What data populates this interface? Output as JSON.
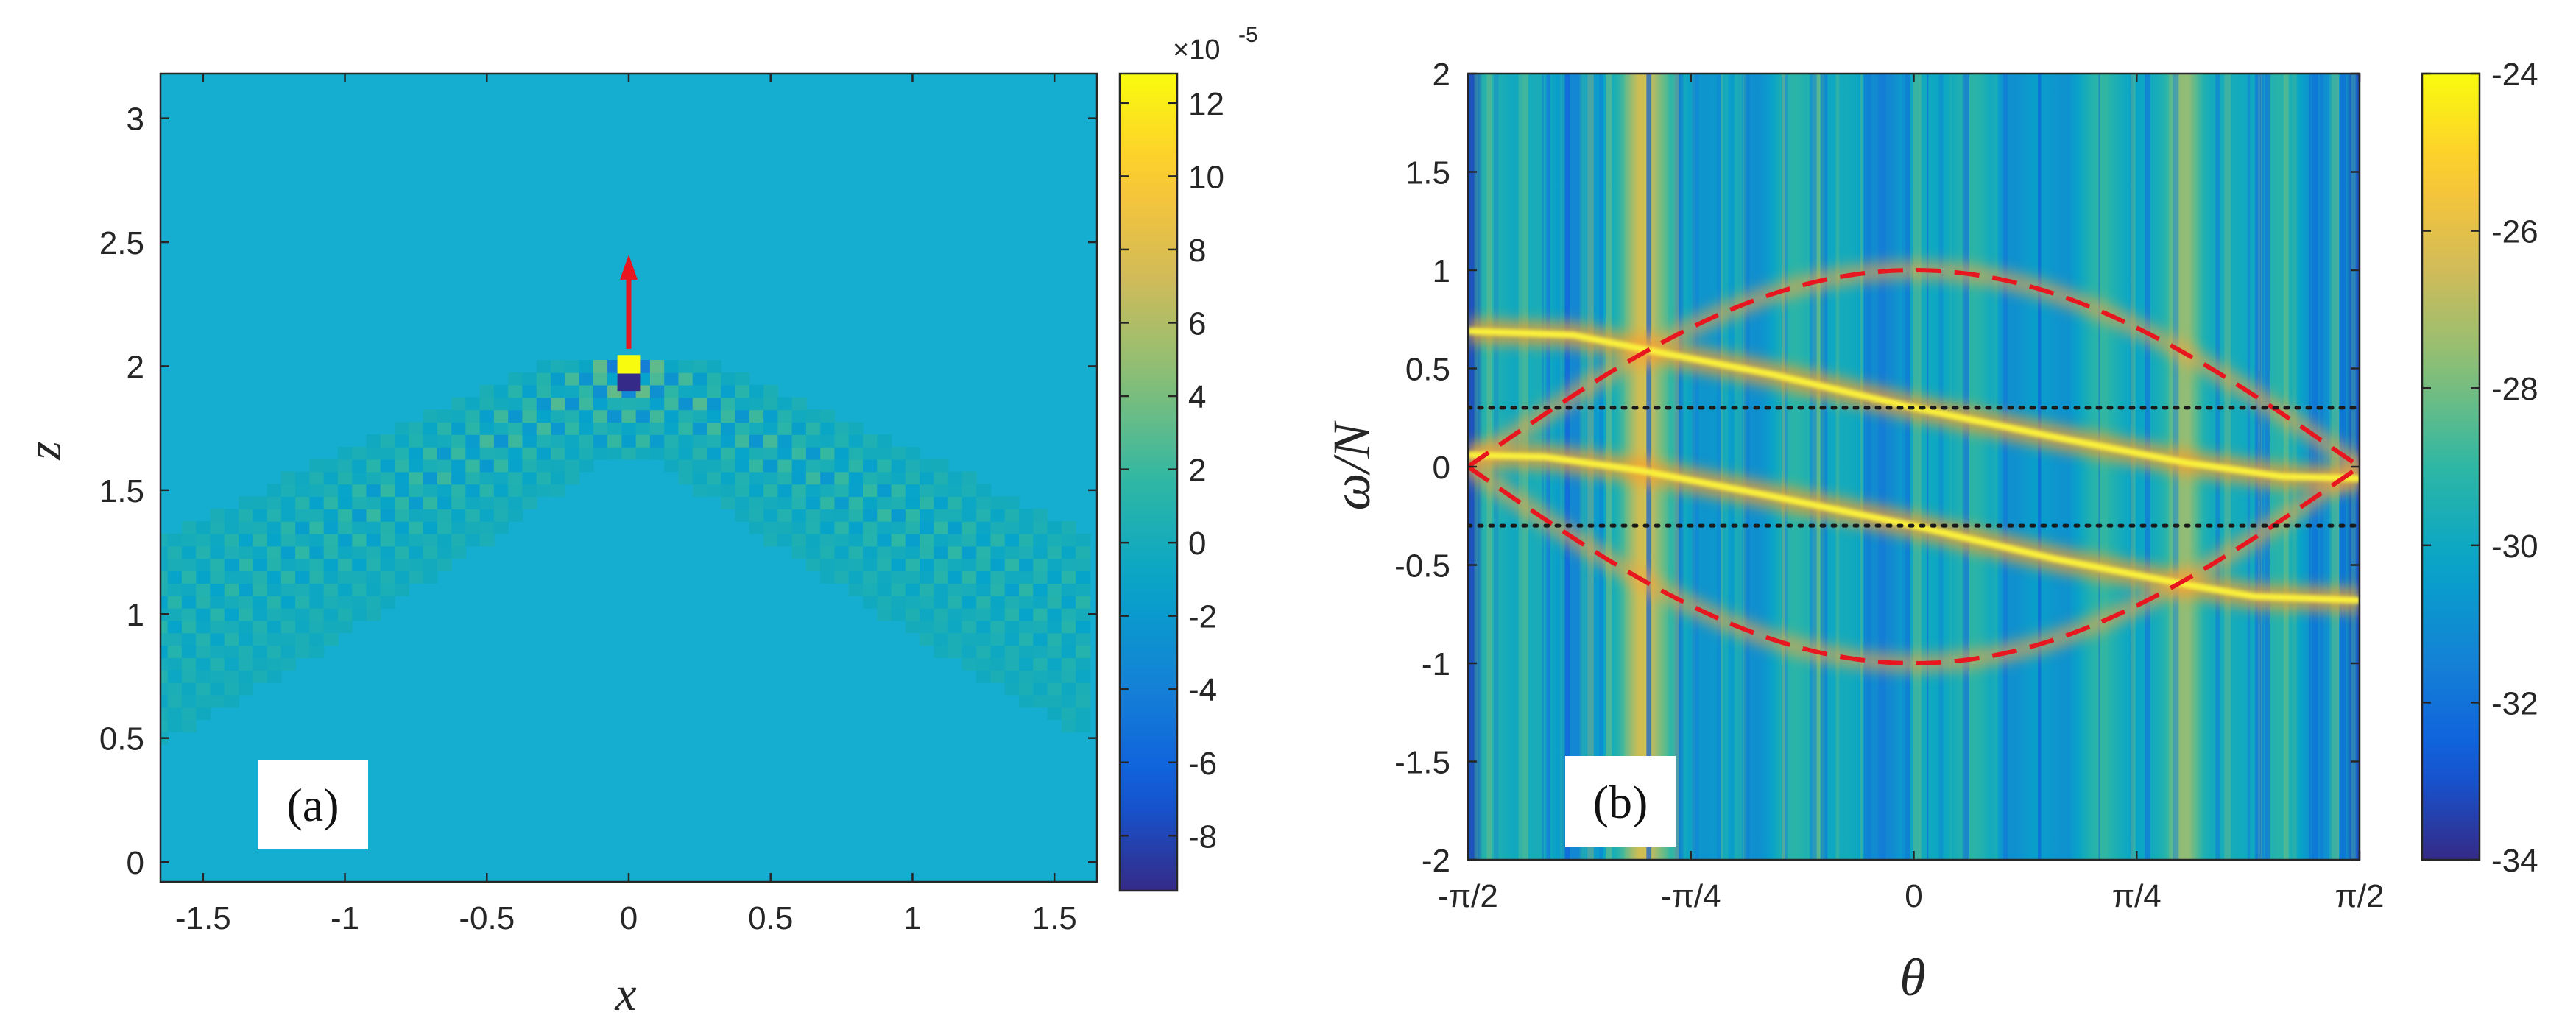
{
  "colors": {
    "parula": [
      "#352a87",
      "#0f5cdd",
      "#1481d6",
      "#06a4ca",
      "#2eb7a4",
      "#87bf77",
      "#d1bb59",
      "#fec832",
      "#f9fb0e"
    ],
    "background_a": "#15aed0",
    "background_b": "#18a8b8",
    "arrow": "#e8161f",
    "dispersion": "#e8161f",
    "ridge": "#fbf13a",
    "dotted": "#1a1a1a",
    "axis": "#262626"
  },
  "chart_data": [
    {
      "type": "heatmap",
      "panel_label": "(a)",
      "xlabel": "x",
      "ylabel": "z",
      "xlim": [
        -1.65,
        1.65
      ],
      "ylim": [
        -0.08,
        3.18
      ],
      "xticks": [
        -1.5,
        -1,
        -0.5,
        0,
        0.5,
        1,
        1.5
      ],
      "xtick_labels": [
        "-1.5",
        "-1",
        "-0.5",
        "0",
        "0.5",
        "1",
        "1.5"
      ],
      "yticks": [
        0,
        0.5,
        1,
        1.5,
        2,
        2.5,
        3
      ],
      "ytick_labels": [
        "0",
        "0.5",
        "1",
        "1.5",
        "2",
        "2.5",
        "3"
      ],
      "source": {
        "x": 0,
        "z": 2.0
      },
      "arrow": {
        "x": 0,
        "z_start": 2.07,
        "z_end": 2.45
      },
      "wave_cone_half_angle_deg": 57,
      "colorbar": {
        "range": [
          -9.5,
          12.8
        ],
        "ticks": [
          -8,
          -6,
          -4,
          -2,
          0,
          2,
          4,
          6,
          8,
          10,
          12
        ],
        "tick_labels": [
          "-8",
          "-6",
          "-4",
          "-2",
          "0",
          "2",
          "4",
          "6",
          "8",
          "10",
          "12"
        ],
        "exponent_label": "×10",
        "exponent": "-5"
      }
    },
    {
      "type": "heatmap",
      "panel_label": "(b)",
      "xlabel": "θ",
      "ylabel": "ω/N",
      "xlim": [
        -1.5708,
        1.5708
      ],
      "ylim": [
        -2,
        2
      ],
      "xticks": [
        -1.5708,
        -0.7854,
        0,
        0.7854,
        1.5708
      ],
      "xtick_labels": [
        "-π/2",
        "-π/4",
        "0",
        "π/4",
        "π/2"
      ],
      "yticks": [
        -2,
        -1.5,
        -1,
        -0.5,
        0,
        0.5,
        1,
        1.5,
        2
      ],
      "ytick_labels": [
        "-2",
        "-1.5",
        "-1",
        "-0.5",
        "0",
        "0.5",
        "1",
        "1.5",
        "2"
      ],
      "bright_columns_theta": [
        -0.96,
        0.96
      ],
      "dispersion_curves": [
        {
          "name": "+cos(theta)",
          "style": "red dashed",
          "amplitude": 1
        },
        {
          "name": "-cos(theta)",
          "style": "red dashed",
          "amplitude": -1
        }
      ],
      "ridge_curves": [
        {
          "name": "upper ridge",
          "points": [
            [
              -1.5708,
              0.69
            ],
            [
              -1.2,
              0.67
            ],
            [
              -0.96,
              0.6
            ],
            [
              -0.5,
              0.47
            ],
            [
              0,
              0.3
            ],
            [
              0.5,
              0.15
            ],
            [
              0.96,
              0.02
            ],
            [
              1.3,
              -0.05
            ],
            [
              1.5708,
              -0.06
            ]
          ]
        },
        {
          "name": "lower ridge",
          "points": [
            [
              -1.5708,
              0.06
            ],
            [
              -1.3,
              0.05
            ],
            [
              -0.96,
              -0.02
            ],
            [
              -0.5,
              -0.15
            ],
            [
              0,
              -0.3
            ],
            [
              0.5,
              -0.47
            ],
            [
              0.96,
              -0.6
            ],
            [
              1.2,
              -0.66
            ],
            [
              1.5708,
              -0.68
            ]
          ]
        },
        {
          "name": "crossing stub",
          "points": [
            [
              -1.5708,
              0.1
            ],
            [
              -1.48,
              0.1
            ]
          ]
        }
      ],
      "dotted_lines_y": [
        0.3,
        -0.3
      ],
      "colorbar": {
        "range": [
          -34,
          -24
        ],
        "ticks": [
          -34,
          -32,
          -30,
          -28,
          -26,
          -24
        ],
        "tick_labels": [
          "-34",
          "-32",
          "-30",
          "-28",
          "-26",
          "-24"
        ]
      }
    }
  ]
}
